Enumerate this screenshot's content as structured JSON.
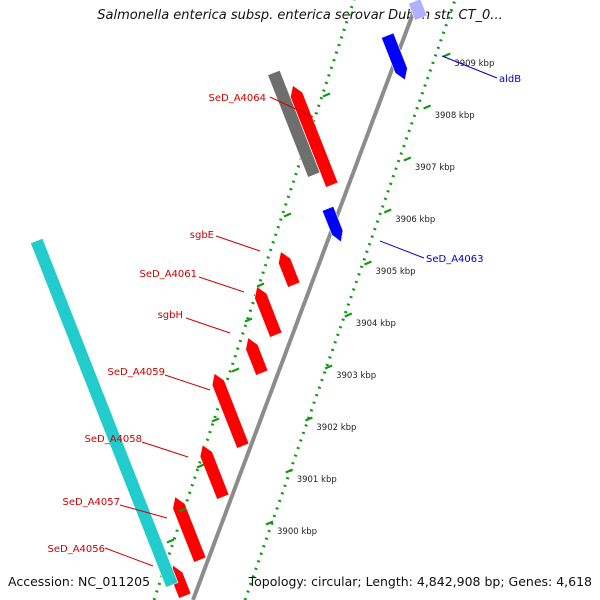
{
  "title": "Salmonella enterica subsp. enterica serovar Dublin str. CT_0...",
  "accession": "Accession: NC_011205",
  "summary": "Topology: circular; Length: 4,842,908 bp; Genes: 4,618",
  "colors": {
    "forward_gene": "#ff0000",
    "reverse_gene": "#0000ff",
    "cds_track": "#22cccc",
    "other_feature": "#6e6e6e",
    "backbone": "#8c8c8c",
    "tick": "#119911",
    "forward_label": "#cc0000",
    "reverse_label": "#0000cc"
  },
  "axis": {
    "unit": "kbp",
    "ticks": [
      {
        "value": 3900,
        "label": "3900 kbp"
      },
      {
        "value": 3901,
        "label": "3901 kbp"
      },
      {
        "value": 3902,
        "label": "3902 kbp"
      },
      {
        "value": 3903,
        "label": "3903 kbp"
      },
      {
        "value": 3904,
        "label": "3904 kbp"
      },
      {
        "value": 3905,
        "label": "3905 kbp"
      },
      {
        "value": 3906,
        "label": "3906 kbp"
      },
      {
        "value": 3907,
        "label": "3907 kbp"
      },
      {
        "value": 3908,
        "label": "3908 kbp"
      },
      {
        "value": 3909,
        "label": "3909 kbp"
      }
    ]
  },
  "forward_labels": [
    "SeD_A4064",
    "sgbE",
    "SeD_A4061",
    "sgbH",
    "SeD_A4059",
    "SeD_A4058",
    "SeD_A4057",
    "SeD_A4056"
  ],
  "reverse_labels": [
    "aldB",
    "SeD_A4063"
  ]
}
